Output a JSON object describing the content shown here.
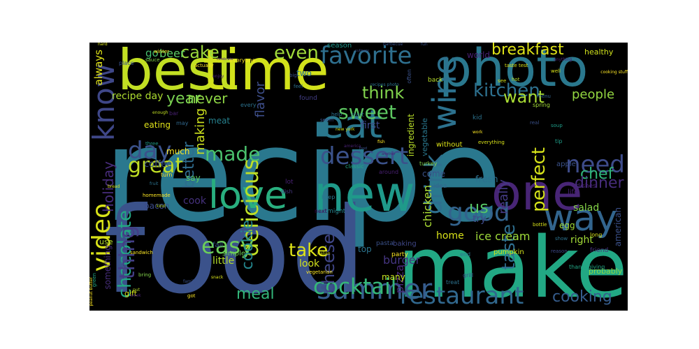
{
  "background": "#000000",
  "palette": [
    "#440154",
    "#482878",
    "#3e4a89",
    "#31688e",
    "#26828e",
    "#1f9e89",
    "#35b779",
    "#6ece58",
    "#b5de2b",
    "#fde725"
  ],
  "words": [
    {
      "text": "recipe",
      "color": "#2a788e"
    },
    {
      "text": "food",
      "color": "#3b528b"
    },
    {
      "text": "make",
      "color": "#22a884"
    },
    {
      "text": "best",
      "color": "#c2df23"
    },
    {
      "text": "time",
      "color": "#d2e21b"
    },
    {
      "text": "photo",
      "color": "#2a788e"
    },
    {
      "text": "new",
      "color": "#1f9a8a"
    },
    {
      "text": "one",
      "color": "#482576"
    },
    {
      "text": "eat",
      "color": "#2a788e"
    },
    {
      "text": "wine",
      "color": "#2c718e"
    },
    {
      "text": "love",
      "color": "#29af7f"
    },
    {
      "text": "way",
      "color": "#32658e"
    },
    {
      "text": "know",
      "color": "#3f4788"
    },
    {
      "text": "video",
      "color": "#d8e219"
    },
    {
      "text": "summer",
      "color": "#365c8d"
    },
    {
      "text": "good",
      "color": "#33638d"
    },
    {
      "text": "day",
      "color": "#3b528b"
    },
    {
      "text": "great",
      "color": "#c0df25"
    },
    {
      "text": "need",
      "color": "#3e4c8a"
    },
    {
      "text": "chocolate",
      "color": "#22a884"
    },
    {
      "text": "restaurant",
      "color": "#31688e"
    },
    {
      "text": "delicious",
      "color": "#bddf26"
    },
    {
      "text": "thing",
      "color": "#433e85"
    },
    {
      "text": "cocktail",
      "color": "#35b779"
    },
    {
      "text": "drink",
      "color": "#2e6f8e"
    },
    {
      "text": "favorite",
      "color": "#2e6f8e"
    },
    {
      "text": "made",
      "color": "#4ac16d"
    },
    {
      "text": "dessert",
      "color": "#3b528b"
    },
    {
      "text": "easy",
      "color": "#6ccd5a"
    },
    {
      "text": "cookie",
      "color": "#24878e"
    },
    {
      "text": "cheese",
      "color": "#404688"
    },
    {
      "text": "take",
      "color": "#dde318"
    },
    {
      "text": "kitchen",
      "color": "#2d708e"
    },
    {
      "text": "cake",
      "color": "#9bd93c"
    },
    {
      "text": "taste",
      "color": "#2e6e8e"
    },
    {
      "text": "perfect",
      "color": "#d5e21a"
    },
    {
      "text": "holiday",
      "color": "#472c7a"
    },
    {
      "text": "sweet",
      "color": "#5ec962"
    },
    {
      "text": "think",
      "color": "#81d34d"
    },
    {
      "text": "chef",
      "color": "#31b57b"
    },
    {
      "text": "cooking",
      "color": "#365d8d"
    },
    {
      "text": "us",
      "color": "#56c667"
    },
    {
      "text": "dinner",
      "color": "#472d7b"
    },
    {
      "text": "even",
      "color": "#9fda3a"
    },
    {
      "text": "year",
      "color": "#7ad151"
    },
    {
      "text": "want",
      "color": "#a8db34"
    },
    {
      "text": "better",
      "color": "#2f6c8e"
    },
    {
      "text": "never",
      "color": "#8ed645"
    },
    {
      "text": "people",
      "color": "#93d741"
    },
    {
      "text": "breakfast",
      "color": "#dfe318"
    },
    {
      "text": "flavor",
      "color": "#3d4e8a"
    },
    {
      "text": "making",
      "color": "#cde11d"
    },
    {
      "text": "meal",
      "color": "#33b67a"
    },
    {
      "text": "burger",
      "color": "#453581"
    },
    {
      "text": "chicken",
      "color": "#ade035"
    },
    {
      "text": "ice cream",
      "color": "#9fda3a"
    },
    {
      "text": "really",
      "color": "#443b84"
    },
    {
      "text": "beer",
      "color": "#5cc863"
    },
    {
      "text": "go",
      "color": "#46c06f"
    },
    {
      "text": "always",
      "color": "#e1e418"
    },
    {
      "text": "recipe day",
      "color": "#addc30"
    },
    {
      "text": "pizza",
      "color": "#482878"
    },
    {
      "text": "cook",
      "color": "#46327e"
    },
    {
      "text": "coffee",
      "color": "#3b528b"
    },
    {
      "text": "bacon",
      "color": "#3d4d8a"
    },
    {
      "text": "look",
      "color": "#d0e11c"
    },
    {
      "text": "little",
      "color": "#b5de2b"
    },
    {
      "text": "many",
      "color": "#c5e021"
    },
    {
      "text": "home",
      "color": "#d8e219"
    },
    {
      "text": "right",
      "color": "#a2da37"
    },
    {
      "text": "try",
      "color": "#3e4a89"
    },
    {
      "text": "top",
      "color": "#2b748e"
    },
    {
      "text": "come",
      "color": "#3b528b"
    },
    {
      "text": "first",
      "color": "#3e4989"
    },
    {
      "text": "salad",
      "color": "#86d549"
    },
    {
      "text": "fresh",
      "color": "#2d708e"
    },
    {
      "text": "eating",
      "color": "#e0e31a"
    },
    {
      "text": "much",
      "color": "#fde725"
    },
    {
      "text": "meat",
      "color": "#26818e"
    },
    {
      "text": "simple",
      "color": "#6ece58"
    },
    {
      "text": "healthy",
      "color": "#d0e11c"
    },
    {
      "text": "egg",
      "color": "#a0da39"
    },
    {
      "text": "world",
      "color": "#482071"
    },
    {
      "text": "two",
      "color": "#2c728e"
    },
    {
      "text": "american",
      "color": "#3b518b"
    },
    {
      "text": "dishes",
      "color": "#482475"
    },
    {
      "text": "ingredient",
      "color": "#b8de29"
    },
    {
      "text": "vegetable",
      "color": "#2a778e"
    },
    {
      "text": "something",
      "color": "#472e7c"
    },
    {
      "text": "say",
      "color": "#5ac864"
    },
    {
      "text": "use",
      "color": "#b5de2b"
    },
    {
      "text": "gift",
      "color": "#d8e219"
    },
    {
      "text": "season",
      "color": "#1f968b"
    },
    {
      "text": "party",
      "color": "#fde725"
    },
    {
      "text": "probably",
      "color": "#8bd646"
    },
    {
      "text": "pumpkin",
      "color": "#d2e21b"
    },
    {
      "text": "thanksgiving",
      "color": "#22a785"
    },
    {
      "text": "baking",
      "color": "#3f4788"
    },
    {
      "text": "fall",
      "color": "#375b8d"
    },
    {
      "text": "pasta",
      "color": "#3b528b"
    },
    {
      "text": "might",
      "color": "#26828e"
    },
    {
      "text": "next",
      "color": "#440154"
    },
    {
      "text": "keep",
      "color": "#2a788e"
    },
    {
      "text": "lot",
      "color": "#482173"
    },
    {
      "text": "dish",
      "color": "#453781"
    },
    {
      "text": "around",
      "color": "#482071"
    },
    {
      "text": "classic",
      "color": "#22a884"
    },
    {
      "text": "start",
      "color": "#2c738e"
    },
    {
      "text": "help",
      "color": "#2c738e"
    },
    {
      "text": "seem",
      "color": "#3b528b"
    },
    {
      "text": "turkey",
      "color": "#84d44b"
    },
    {
      "text": "without",
      "color": "#dde318"
    },
    {
      "text": "life",
      "color": "#482374"
    },
    {
      "text": "apple",
      "color": "#3b528b"
    },
    {
      "text": "tip",
      "color": "#1f9e89"
    },
    {
      "text": "soup",
      "color": "#1f9e89"
    },
    {
      "text": "well",
      "color": "#d8e219"
    },
    {
      "text": "friend",
      "color": "#46327e"
    },
    {
      "text": "real",
      "color": "#3b528b"
    },
    {
      "text": "idea",
      "color": "#31688e"
    },
    {
      "text": "end",
      "color": "#2c728e"
    },
    {
      "text": "long",
      "color": "#d8e219"
    },
    {
      "text": "reason",
      "color": "#3e4989"
    },
    {
      "text": "spring",
      "color": "#a2da37"
    },
    {
      "text": "menu",
      "color": "#33638d"
    },
    {
      "text": "see",
      "color": "#d8e219"
    },
    {
      "text": "kid",
      "color": "#2c728e"
    },
    {
      "text": "back",
      "color": "#b8de29"
    },
    {
      "text": "found",
      "color": "#433e85"
    },
    {
      "text": "feel",
      "color": "#2c728e"
    },
    {
      "text": "big",
      "color": "#3b528b"
    },
    {
      "text": "bar",
      "color": "#482173"
    },
    {
      "text": "winter",
      "color": "#fde725"
    },
    {
      "text": "every",
      "color": "#2c728e"
    },
    {
      "text": "enough",
      "color": "#c2df23"
    },
    {
      "text": "may",
      "color": "#31688e"
    },
    {
      "text": "three",
      "color": "#1f9e89"
    },
    {
      "text": "turn",
      "color": "#fde725"
    },
    {
      "text": "kind",
      "color": "#b8de29"
    },
    {
      "text": "homemade",
      "color": "#fde725"
    },
    {
      "text": "bread",
      "color": "#d8e219"
    },
    {
      "text": "fruit",
      "color": "#2c728e"
    },
    {
      "text": "sandwich",
      "color": "#fde725"
    },
    {
      "text": "bring",
      "color": "#84d44b"
    },
    {
      "text": "put",
      "color": "#b8de29"
    },
    {
      "text": "got",
      "color": "#fde725"
    },
    {
      "text": "family",
      "color": "#3b528b"
    },
    {
      "text": "snack",
      "color": "#d8e219"
    },
    {
      "text": "week",
      "color": "#482173"
    },
    {
      "text": "still",
      "color": "#31688e"
    },
    {
      "text": "green",
      "color": "#22a884"
    },
    {
      "text": "place",
      "color": "#3b528b"
    },
    {
      "text": "actually",
      "color": "#fde725"
    },
    {
      "text": "everyone",
      "color": "#fde725"
    },
    {
      "text": "sauce",
      "color": "#84d44b"
    },
    {
      "text": "hard",
      "color": "#d8e219"
    },
    {
      "text": "everything",
      "color": "#d8e219"
    },
    {
      "text": "work",
      "color": "#fde725"
    },
    {
      "text": "hot",
      "color": "#b8de29"
    },
    {
      "text": "taste test",
      "color": "#d8e219"
    },
    {
      "text": "vegetarian",
      "color": "#fde725"
    },
    {
      "text": "grill",
      "color": "#3b528b"
    },
    {
      "text": "treat",
      "color": "#2c728e"
    },
    {
      "text": "bottle",
      "color": "#d8e219"
    },
    {
      "text": "often",
      "color": "#3b528b"
    },
    {
      "text": "fun",
      "color": "#3b528b"
    },
    {
      "text": "italian",
      "color": "#d8e219"
    },
    {
      "text": "new york",
      "color": "#d8e219"
    },
    {
      "text": "show",
      "color": "#2c728e"
    },
    {
      "text": "anything",
      "color": "#482173"
    },
    {
      "text": "cooking stuff",
      "color": "#fde725"
    },
    {
      "text": "peanut butter",
      "color": "#fde725"
    },
    {
      "text": "america",
      "color": "#482173"
    },
    {
      "text": "culinary",
      "color": "#3b528b"
    },
    {
      "text": "recipes photo",
      "color": "#2c728e"
    },
    {
      "text": "enjoy",
      "color": "#482173"
    },
    {
      "text": "fish",
      "color": "#fde725"
    },
    {
      "text": "food",
      "color": "#3b528b"
    },
    {
      "text": "another",
      "color": "#482173"
    },
    {
      "text": "celebrate",
      "color": "#482173"
    },
    {
      "text": "barbecue",
      "color": "#3b528b"
    },
    {
      "text": "recipe photo",
      "color": "#2c728e"
    },
    {
      "text": "food photo",
      "color": "#482173"
    },
    {
      "text": "new recipe",
      "color": "#482173"
    },
    {
      "text": "food photos",
      "color": "#482173"
    },
    {
      "text": "rec",
      "color": "#482173"
    },
    {
      "text": "food new",
      "color": "#482173"
    }
  ]
}
